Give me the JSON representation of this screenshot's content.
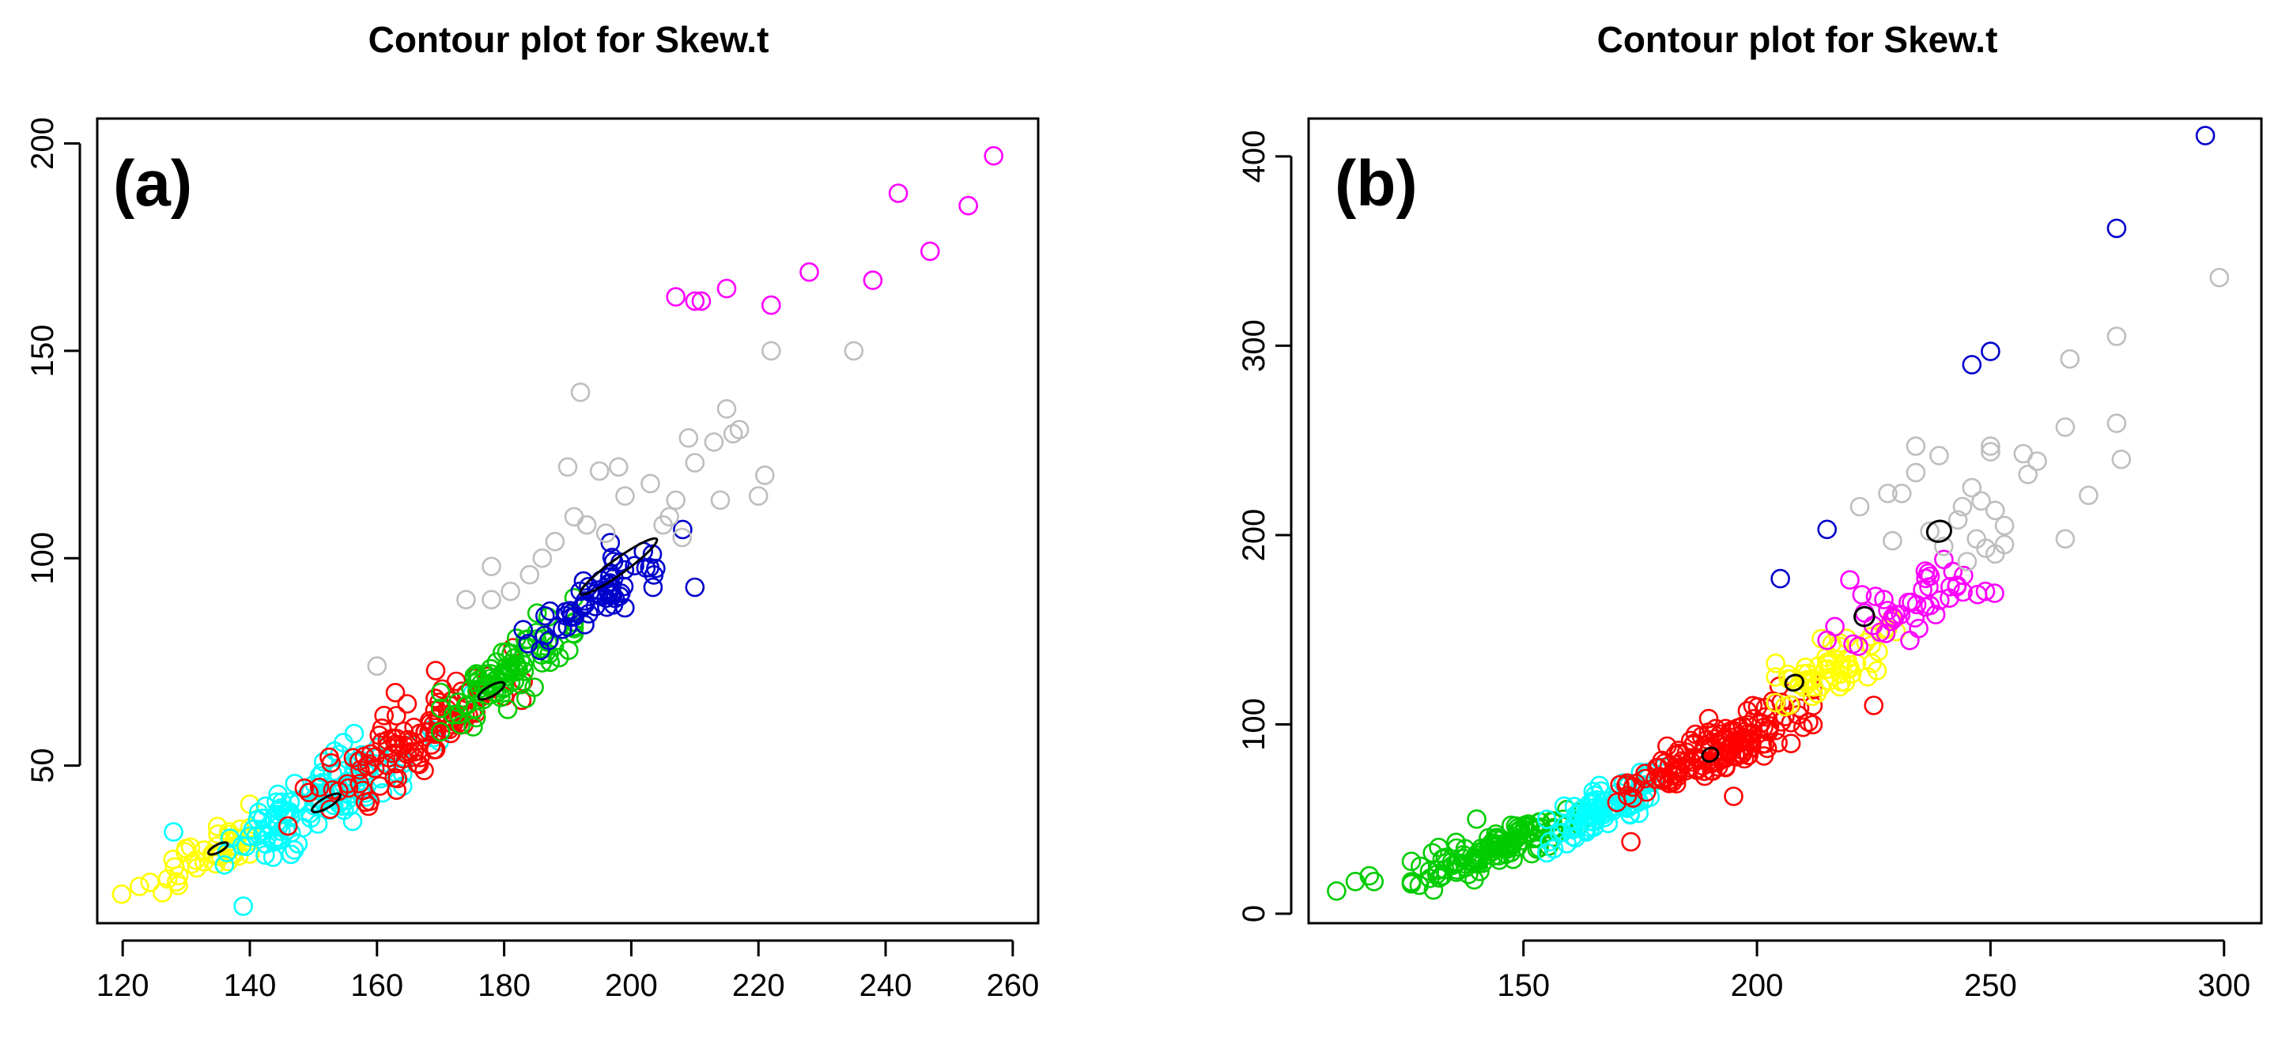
{
  "chart_data": [
    {
      "type": "scatter",
      "panel_label": "(a)",
      "title": "Contour plot for Skew.t",
      "xlabel": "",
      "ylabel": "",
      "xlim": [
        116,
        264
      ],
      "ylim": [
        12,
        206
      ],
      "xticks": [
        120,
        140,
        160,
        180,
        200,
        220,
        240,
        260
      ],
      "yticks": [
        50,
        100,
        150,
        200
      ],
      "grid": false,
      "legend": "none",
      "clusters": [
        {
          "name": "yellow cluster",
          "color": "#ffff00",
          "n": 45,
          "center": [
            133,
            28
          ],
          "slope": 0.78,
          "spread_x": 6,
          "spread_y": 3,
          "range_x": [
            119,
            140
          ]
        },
        {
          "name": "cyan cluster",
          "color": "#00ffff",
          "n": 120,
          "center": [
            151,
            42
          ],
          "slope": 0.85,
          "spread_x": 8,
          "spread_y": 4.5,
          "range_x": [
            136,
            175
          ]
        },
        {
          "name": "red cluster",
          "color": "#ff0000",
          "n": 110,
          "center": [
            166,
            57
          ],
          "slope": 0.85,
          "spread_x": 8,
          "spread_y": 4.5,
          "range_x": [
            146,
            183
          ]
        },
        {
          "name": "green cluster",
          "color": "#00cc00",
          "n": 90,
          "center": [
            180,
            72
          ],
          "slope": 0.9,
          "spread_x": 6,
          "spread_y": 4,
          "range_x": [
            170,
            191
          ]
        },
        {
          "name": "blue cluster",
          "color": "#0000cc",
          "n": 65,
          "center": [
            195,
            92
          ],
          "slope": 0.9,
          "spread_x": 6,
          "spread_y": 3.5,
          "range_x": [
            183,
            210
          ]
        }
      ],
      "points": [
        {
          "series": "gray",
          "color": "#bebebe",
          "x": 192,
          "y": 140
        },
        {
          "series": "gray",
          "color": "#bebebe",
          "x": 190,
          "y": 122
        },
        {
          "series": "gray",
          "color": "#bebebe",
          "x": 195,
          "y": 121
        },
        {
          "series": "gray",
          "color": "#bebebe",
          "x": 198,
          "y": 122
        },
        {
          "series": "gray",
          "color": "#bebebe",
          "x": 199,
          "y": 115
        },
        {
          "series": "gray",
          "color": "#bebebe",
          "x": 203,
          "y": 118
        },
        {
          "series": "gray",
          "color": "#bebebe",
          "x": 205,
          "y": 108
        },
        {
          "series": "gray",
          "color": "#bebebe",
          "x": 206,
          "y": 110
        },
        {
          "series": "gray",
          "color": "#bebebe",
          "x": 208,
          "y": 105
        },
        {
          "series": "gray",
          "color": "#bebebe",
          "x": 209,
          "y": 129
        },
        {
          "series": "gray",
          "color": "#bebebe",
          "x": 210,
          "y": 123
        },
        {
          "series": "gray",
          "color": "#bebebe",
          "x": 213,
          "y": 128
        },
        {
          "series": "gray",
          "color": "#bebebe",
          "x": 214,
          "y": 114
        },
        {
          "series": "gray",
          "color": "#bebebe",
          "x": 215,
          "y": 136
        },
        {
          "series": "gray",
          "color": "#bebebe",
          "x": 216,
          "y": 130
        },
        {
          "series": "gray",
          "color": "#bebebe",
          "x": 217,
          "y": 131
        },
        {
          "series": "gray",
          "color": "#bebebe",
          "x": 220,
          "y": 115
        },
        {
          "series": "gray",
          "color": "#bebebe",
          "x": 221,
          "y": 120
        },
        {
          "series": "gray",
          "color": "#bebebe",
          "x": 222,
          "y": 150
        },
        {
          "series": "gray",
          "color": "#bebebe",
          "x": 235,
          "y": 150
        },
        {
          "series": "gray",
          "color": "#bebebe",
          "x": 191,
          "y": 110
        },
        {
          "series": "gray",
          "color": "#bebebe",
          "x": 193,
          "y": 108
        },
        {
          "series": "gray",
          "color": "#bebebe",
          "x": 186,
          "y": 100
        },
        {
          "series": "gray",
          "color": "#bebebe",
          "x": 184,
          "y": 96
        },
        {
          "series": "gray",
          "color": "#bebebe",
          "x": 178,
          "y": 98
        },
        {
          "series": "gray",
          "color": "#bebebe",
          "x": 178,
          "y": 90
        },
        {
          "series": "gray",
          "color": "#bebebe",
          "x": 174,
          "y": 90
        },
        {
          "series": "gray",
          "color": "#bebebe",
          "x": 188,
          "y": 104
        },
        {
          "series": "gray",
          "color": "#bebebe",
          "x": 196,
          "y": 106
        },
        {
          "series": "gray",
          "color": "#bebebe",
          "x": 207,
          "y": 114
        },
        {
          "series": "gray",
          "color": "#bebebe",
          "x": 160,
          "y": 74
        },
        {
          "series": "gray",
          "color": "#bebebe",
          "x": 181,
          "y": 92
        },
        {
          "series": "magenta",
          "color": "#ff00ff",
          "x": 207,
          "y": 163
        },
        {
          "series": "magenta",
          "color": "#ff00ff",
          "x": 210,
          "y": 162
        },
        {
          "series": "magenta",
          "color": "#ff00ff",
          "x": 211,
          "y": 162
        },
        {
          "series": "magenta",
          "color": "#ff00ff",
          "x": 215,
          "y": 165
        },
        {
          "series": "magenta",
          "color": "#ff00ff",
          "x": 222,
          "y": 161
        },
        {
          "series": "magenta",
          "color": "#ff00ff",
          "x": 228,
          "y": 169
        },
        {
          "series": "magenta",
          "color": "#ff00ff",
          "x": 238,
          "y": 167
        },
        {
          "series": "magenta",
          "color": "#ff00ff",
          "x": 242,
          "y": 188
        },
        {
          "series": "magenta",
          "color": "#ff00ff",
          "x": 247,
          "y": 174
        },
        {
          "series": "magenta",
          "color": "#ff00ff",
          "x": 253,
          "y": 185
        },
        {
          "series": "magenta",
          "color": "#ff00ff",
          "x": 257,
          "y": 197
        },
        {
          "series": "blue",
          "color": "#0000cc",
          "x": 210,
          "y": 93
        },
        {
          "series": "cyan",
          "color": "#00ffff",
          "x": 128,
          "y": 34
        }
      ],
      "contours": [
        {
          "center": [
            198,
            98
          ],
          "slope": 1.1,
          "rx": 6,
          "ry": 1.2
        },
        {
          "center": [
            178,
            68
          ],
          "slope": 0.9,
          "rx": 2,
          "ry": 0.8
        },
        {
          "center": [
            152,
            41
          ],
          "slope": 0.9,
          "rx": 2.2,
          "ry": 0.8
        },
        {
          "center": [
            135,
            30
          ],
          "slope": 0.8,
          "rx": 1.5,
          "ry": 0.6
        }
      ]
    },
    {
      "type": "scatter",
      "panel_label": "(b)",
      "title": "Contour plot for Skew.t",
      "xlabel": "",
      "ylabel": "",
      "xlim": [
        104,
        308
      ],
      "ylim": [
        -5,
        420
      ],
      "xticks": [
        150,
        200,
        250,
        300
      ],
      "yticks": [
        0,
        100,
        200,
        300,
        400
      ],
      "grid": false,
      "legend": "none",
      "clusters": [
        {
          "name": "green cluster",
          "color": "#00cc00",
          "n": 120,
          "center": [
            145,
            35
          ],
          "slope": 0.95,
          "spread_x": 9,
          "spread_y": 5,
          "range_x": [
            126,
            162
          ]
        },
        {
          "name": "cyan cluster",
          "color": "#00ffff",
          "n": 90,
          "center": [
            168,
            57
          ],
          "slope": 1.1,
          "spread_x": 6,
          "spread_y": 5,
          "range_x": [
            155,
            180
          ]
        },
        {
          "name": "red cluster",
          "color": "#ff0000",
          "n": 160,
          "center": [
            192,
            88
          ],
          "slope": 1.05,
          "spread_x": 10,
          "spread_y": 7,
          "range_x": [
            170,
            212
          ]
        },
        {
          "name": "yellow cluster",
          "color": "#ffff00",
          "n": 60,
          "center": [
            215,
            130
          ],
          "slope": 1.2,
          "spread_x": 6,
          "spread_y": 8,
          "range_x": [
            204,
            230
          ]
        },
        {
          "name": "magenta cluster",
          "color": "#ff00ff",
          "n": 45,
          "center": [
            232,
            165
          ],
          "slope": 0.7,
          "spread_x": 9,
          "spread_y": 9,
          "range_x": [
            215,
            256
          ]
        }
      ],
      "points": [
        {
          "series": "green",
          "color": "#00cc00",
          "x": 110,
          "y": 12
        },
        {
          "series": "green",
          "color": "#00cc00",
          "x": 114,
          "y": 17
        },
        {
          "series": "green",
          "color": "#00cc00",
          "x": 117,
          "y": 20
        },
        {
          "series": "green",
          "color": "#00cc00",
          "x": 118,
          "y": 17
        },
        {
          "series": "green",
          "color": "#00cc00",
          "x": 140,
          "y": 50
        },
        {
          "series": "red",
          "color": "#ff0000",
          "x": 173,
          "y": 38
        },
        {
          "series": "red",
          "color": "#ff0000",
          "x": 225,
          "y": 110
        },
        {
          "series": "red",
          "color": "#ff0000",
          "x": 195,
          "y": 62
        },
        {
          "series": "blue",
          "color": "#0000cc",
          "x": 296,
          "y": 411
        },
        {
          "series": "blue",
          "color": "#0000cc",
          "x": 277,
          "y": 362
        },
        {
          "series": "blue",
          "color": "#0000cc",
          "x": 250,
          "y": 297
        },
        {
          "series": "blue",
          "color": "#0000cc",
          "x": 246,
          "y": 290
        },
        {
          "series": "blue",
          "color": "#0000cc",
          "x": 215,
          "y": 203
        },
        {
          "series": "blue",
          "color": "#0000cc",
          "x": 205,
          "y": 177
        },
        {
          "series": "gray",
          "color": "#bebebe",
          "x": 299,
          "y": 336
        },
        {
          "series": "gray",
          "color": "#bebebe",
          "x": 277,
          "y": 305
        },
        {
          "series": "gray",
          "color": "#bebebe",
          "x": 267,
          "y": 293
        },
        {
          "series": "gray",
          "color": "#bebebe",
          "x": 277,
          "y": 259
        },
        {
          "series": "gray",
          "color": "#bebebe",
          "x": 278,
          "y": 240
        },
        {
          "series": "gray",
          "color": "#bebebe",
          "x": 266,
          "y": 257
        },
        {
          "series": "gray",
          "color": "#bebebe",
          "x": 260,
          "y": 239
        },
        {
          "series": "gray",
          "color": "#bebebe",
          "x": 257,
          "y": 243
        },
        {
          "series": "gray",
          "color": "#bebebe",
          "x": 250,
          "y": 247
        },
        {
          "series": "gray",
          "color": "#bebebe",
          "x": 250,
          "y": 244
        },
        {
          "series": "gray",
          "color": "#bebebe",
          "x": 258,
          "y": 232
        },
        {
          "series": "gray",
          "color": "#bebebe",
          "x": 271,
          "y": 221
        },
        {
          "series": "gray",
          "color": "#bebebe",
          "x": 266,
          "y": 198
        },
        {
          "series": "gray",
          "color": "#bebebe",
          "x": 253,
          "y": 205
        },
        {
          "series": "gray",
          "color": "#bebebe",
          "x": 251,
          "y": 213
        },
        {
          "series": "gray",
          "color": "#bebebe",
          "x": 248,
          "y": 218
        },
        {
          "series": "gray",
          "color": "#bebebe",
          "x": 246,
          "y": 225
        },
        {
          "series": "gray",
          "color": "#bebebe",
          "x": 244,
          "y": 215
        },
        {
          "series": "gray",
          "color": "#bebebe",
          "x": 243,
          "y": 208
        },
        {
          "series": "gray",
          "color": "#bebebe",
          "x": 247,
          "y": 198
        },
        {
          "series": "gray",
          "color": "#bebebe",
          "x": 249,
          "y": 193
        },
        {
          "series": "gray",
          "color": "#bebebe",
          "x": 251,
          "y": 190
        },
        {
          "series": "gray",
          "color": "#bebebe",
          "x": 253,
          "y": 195
        },
        {
          "series": "gray",
          "color": "#bebebe",
          "x": 239,
          "y": 242
        },
        {
          "series": "gray",
          "color": "#bebebe",
          "x": 234,
          "y": 247
        },
        {
          "series": "gray",
          "color": "#bebebe",
          "x": 234,
          "y": 233
        },
        {
          "series": "gray",
          "color": "#bebebe",
          "x": 228,
          "y": 222
        },
        {
          "series": "gray",
          "color": "#bebebe",
          "x": 231,
          "y": 222
        },
        {
          "series": "gray",
          "color": "#bebebe",
          "x": 222,
          "y": 215
        },
        {
          "series": "gray",
          "color": "#bebebe",
          "x": 237,
          "y": 202
        },
        {
          "series": "gray",
          "color": "#bebebe",
          "x": 229,
          "y": 197
        },
        {
          "series": "gray",
          "color": "#bebebe",
          "x": 240,
          "y": 194
        },
        {
          "series": "gray",
          "color": "#bebebe",
          "x": 245,
          "y": 186
        }
      ],
      "contours": [
        {
          "center": [
            239,
            202
          ],
          "slope": 0.6,
          "rx": 2.5,
          "ry": 2.2
        },
        {
          "center": [
            223,
            157
          ],
          "slope": 0.8,
          "rx": 2.0,
          "ry": 2.0
        },
        {
          "center": [
            208,
            122
          ],
          "slope": 1.0,
          "rx": 1.8,
          "ry": 1.6
        },
        {
          "center": [
            190,
            84
          ],
          "slope": 1.0,
          "rx": 1.6,
          "ry": 1.4
        }
      ]
    }
  ]
}
